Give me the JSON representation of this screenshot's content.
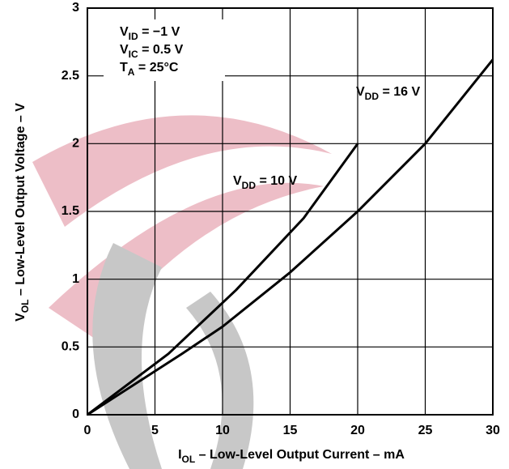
{
  "chart_data": {
    "type": "line",
    "x_label": {
      "base": "I",
      "sub": "OL",
      "rest": " – Low-Level Output Current – mA"
    },
    "y_label": {
      "base": "V",
      "sub": "OL",
      "rest": " – Low-Level Output Voltage – V"
    },
    "annotations": [
      {
        "base": "V",
        "sub": "ID",
        "rest": " = −1 V"
      },
      {
        "base": "V",
        "sub": "IC",
        "rest": " = 0.5 V"
      },
      {
        "base": "T",
        "sub": "A",
        "rest": " = 25°C"
      }
    ],
    "xlim": [
      0,
      30
    ],
    "ylim": [
      0,
      3
    ],
    "xticks": [
      0,
      5,
      10,
      15,
      20,
      25,
      30
    ],
    "yticks": [
      0,
      0.5,
      1,
      1.5,
      2,
      2.5,
      3
    ],
    "grid": true,
    "series": [
      {
        "label": {
          "base": "V",
          "sub": "DD",
          "rest": " = 10 V"
        },
        "color": "#000000",
        "x": [
          0,
          6,
          11,
          16,
          20
        ],
        "values": [
          0,
          0.45,
          0.92,
          1.45,
          2.0
        ]
      },
      {
        "label": {
          "base": "V",
          "sub": "DD",
          "rest": " = 16 V"
        },
        "color": "#000000",
        "x": [
          0,
          7,
          10,
          15,
          20,
          25,
          30
        ],
        "values": [
          0,
          0.45,
          0.65,
          1.05,
          1.5,
          2.0,
          2.62
        ]
      }
    ]
  }
}
